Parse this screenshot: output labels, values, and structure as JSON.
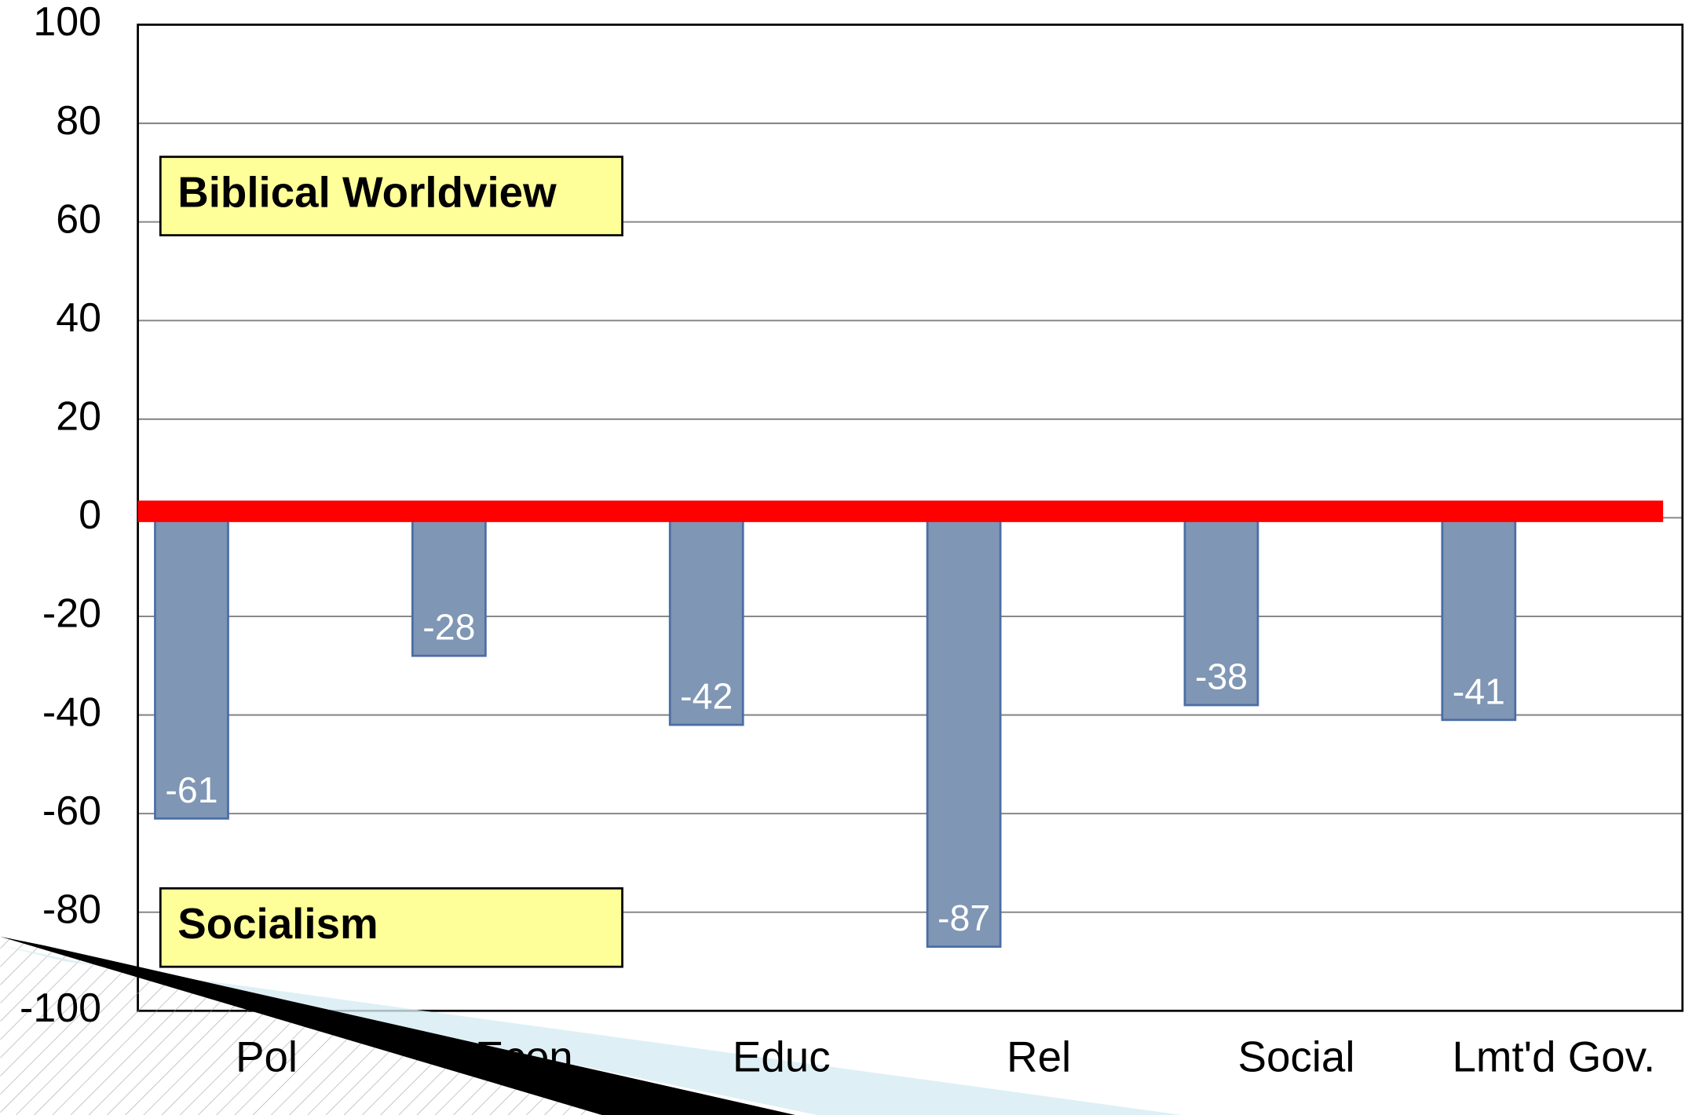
{
  "chart_data": {
    "type": "bar",
    "annotations": [
      "Biblical Worldview",
      "Socialism"
    ],
    "categories": [
      "Pol",
      "Econ",
      "Educ",
      "Rel",
      "Social",
      "Lmt'd Gov."
    ],
    "values": [
      -61,
      -28,
      -42,
      -87,
      -38,
      -41
    ],
    "color": "#7f96b4",
    "edge_color": "#4a6ea5",
    "reference_line_color": "#ff0000",
    "ylim": [
      -100,
      100
    ],
    "yticks": [
      -100,
      -80,
      -60,
      -40,
      -20,
      0,
      20,
      40,
      60,
      80,
      100
    ],
    "grid": true
  }
}
